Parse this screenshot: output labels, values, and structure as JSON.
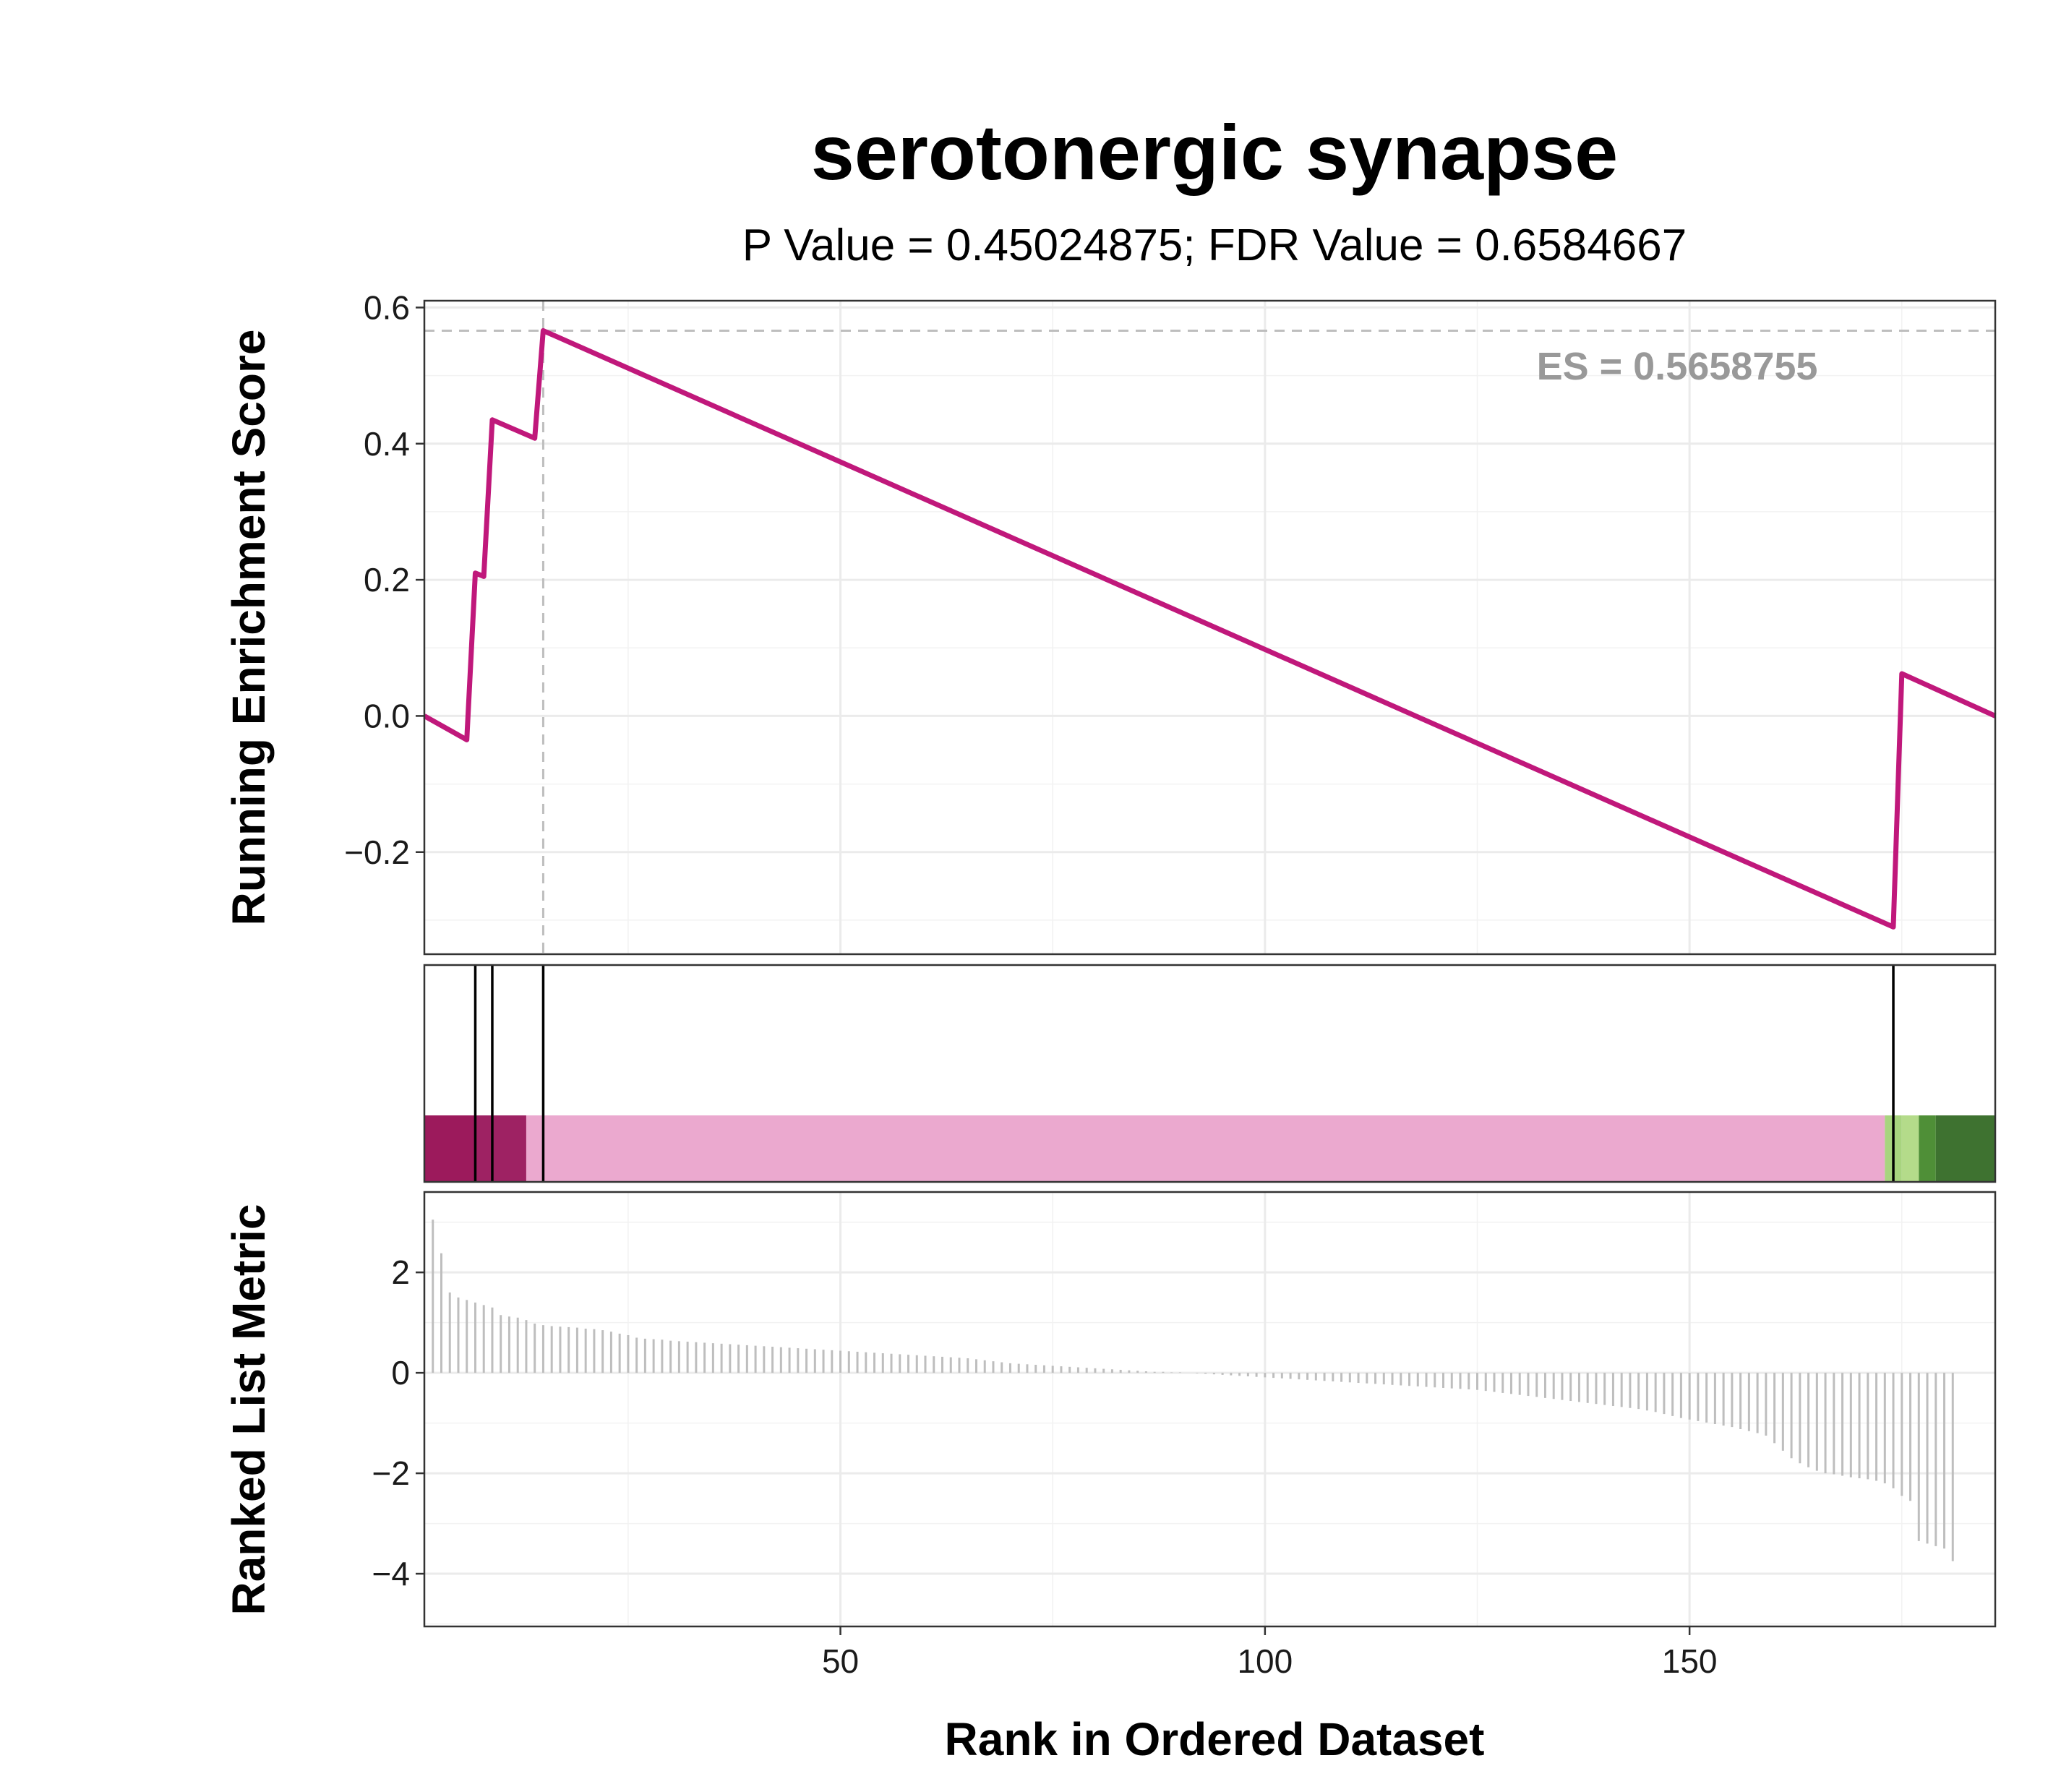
{
  "title": "serotonergic synapse",
  "subtitle": "P Value = 0.45024875; FDR Value = 0.6584667",
  "es_label": "ES = 0.5658755",
  "y_label_top": "Running Enrichment Score",
  "y_label_bottom": "Ranked List Metric",
  "x_label": "Rank in Ordered Dataset",
  "colors": {
    "line": "#C0187B",
    "es_text": "#999999",
    "dashed": "#BEBEBE",
    "hits": "#000000",
    "metric_bars": "#BEBEBE",
    "heat": [
      "#9C1A5C",
      "#9E2263",
      "#EBA9CF",
      "#A8D47F",
      "#B4DB8A",
      "#4F8F37",
      "#3E7230"
    ]
  },
  "chart_data": [
    {
      "type": "line",
      "panel": "running-enrichment-score",
      "x": [
        1,
        6,
        7,
        8,
        9,
        14,
        15,
        174,
        175,
        186
      ],
      "y": [
        0.0,
        -0.035,
        0.21,
        0.205,
        0.435,
        0.408,
        0.566,
        -0.31,
        0.062,
        0.0
      ],
      "xlim": [
        1,
        186
      ],
      "ylim": [
        -0.35,
        0.61
      ],
      "yticks": [
        -0.2,
        0.0,
        0.2,
        0.4,
        0.6
      ],
      "ytick_labels": [
        "−0.2",
        "0.0",
        "0.2",
        "0.4",
        "0.6"
      ],
      "enrichment_score": 0.5658755,
      "es_rank": 15,
      "grid": true
    },
    {
      "type": "rug",
      "panel": "gene-hits",
      "hit_ranks": [
        7,
        9,
        15,
        174
      ],
      "heat_bands": [
        {
          "from": 1,
          "to": 7,
          "color": "#9C1A5C"
        },
        {
          "from": 7,
          "to": 13,
          "color": "#9E2263"
        },
        {
          "from": 13,
          "to": 173,
          "color": "#EBA9CF"
        },
        {
          "from": 173,
          "to": 175,
          "color": "#A8D47F"
        },
        {
          "from": 175,
          "to": 177,
          "color": "#B4DB8A"
        },
        {
          "from": 177,
          "to": 179,
          "color": "#4F8F37"
        },
        {
          "from": 179,
          "to": 186,
          "color": "#3E7230"
        }
      ]
    },
    {
      "type": "bar",
      "panel": "ranked-list-metric",
      "x_start": 2,
      "values": [
        3.05,
        2.38,
        1.6,
        1.5,
        1.45,
        1.4,
        1.35,
        1.3,
        1.15,
        1.12,
        1.1,
        1.05,
        0.98,
        0.95,
        0.93,
        0.92,
        0.91,
        0.9,
        0.88,
        0.87,
        0.85,
        0.82,
        0.78,
        0.75,
        0.7,
        0.68,
        0.67,
        0.66,
        0.64,
        0.63,
        0.62,
        0.61,
        0.6,
        0.59,
        0.58,
        0.57,
        0.56,
        0.55,
        0.54,
        0.53,
        0.52,
        0.51,
        0.5,
        0.49,
        0.48,
        0.47,
        0.46,
        0.45,
        0.44,
        0.43,
        0.42,
        0.41,
        0.4,
        0.39,
        0.38,
        0.37,
        0.36,
        0.35,
        0.34,
        0.33,
        0.32,
        0.31,
        0.3,
        0.29,
        0.27,
        0.25,
        0.23,
        0.21,
        0.19,
        0.18,
        0.17,
        0.16,
        0.15,
        0.14,
        0.13,
        0.12,
        0.11,
        0.1,
        0.09,
        0.08,
        0.07,
        0.06,
        0.05,
        0.04,
        0.03,
        0.02,
        0.02,
        0.01,
        0.01,
        0.0,
        -0.01,
        -0.02,
        -0.03,
        -0.04,
        -0.05,
        -0.06,
        -0.07,
        -0.08,
        -0.09,
        -0.1,
        -0.11,
        -0.12,
        -0.13,
        -0.14,
        -0.15,
        -0.16,
        -0.17,
        -0.18,
        -0.19,
        -0.2,
        -0.21,
        -0.22,
        -0.23,
        -0.24,
        -0.25,
        -0.26,
        -0.27,
        -0.28,
        -0.29,
        -0.3,
        -0.31,
        -0.32,
        -0.33,
        -0.34,
        -0.36,
        -0.38,
        -0.4,
        -0.42,
        -0.44,
        -0.46,
        -0.48,
        -0.5,
        -0.52,
        -0.54,
        -0.56,
        -0.58,
        -0.6,
        -0.62,
        -0.64,
        -0.66,
        -0.68,
        -0.7,
        -0.72,
        -0.75,
        -0.78,
        -0.82,
        -0.86,
        -0.9,
        -0.93,
        -0.96,
        -0.99,
        -1.02,
        -1.05,
        -1.08,
        -1.12,
        -1.16,
        -1.2,
        -1.25,
        -1.4,
        -1.55,
        -1.7,
        -1.8,
        -1.88,
        -1.95,
        -2.0,
        -2.02,
        -2.05,
        -2.08,
        -2.1,
        -2.12,
        -2.15,
        -2.2,
        -2.3,
        -2.45,
        -2.55,
        -3.35,
        -3.4,
        -3.45,
        -3.5,
        -3.75
      ],
      "xlim": [
        1,
        186
      ],
      "ylim": [
        -5.05,
        3.6
      ],
      "yticks": [
        -4,
        -2,
        0,
        2
      ],
      "ytick_labels": [
        "−4",
        "−2",
        "0",
        "2"
      ],
      "xticks": [
        50,
        100,
        150
      ],
      "xtick_labels": [
        "50",
        "100",
        "150"
      ],
      "grid": true
    }
  ]
}
